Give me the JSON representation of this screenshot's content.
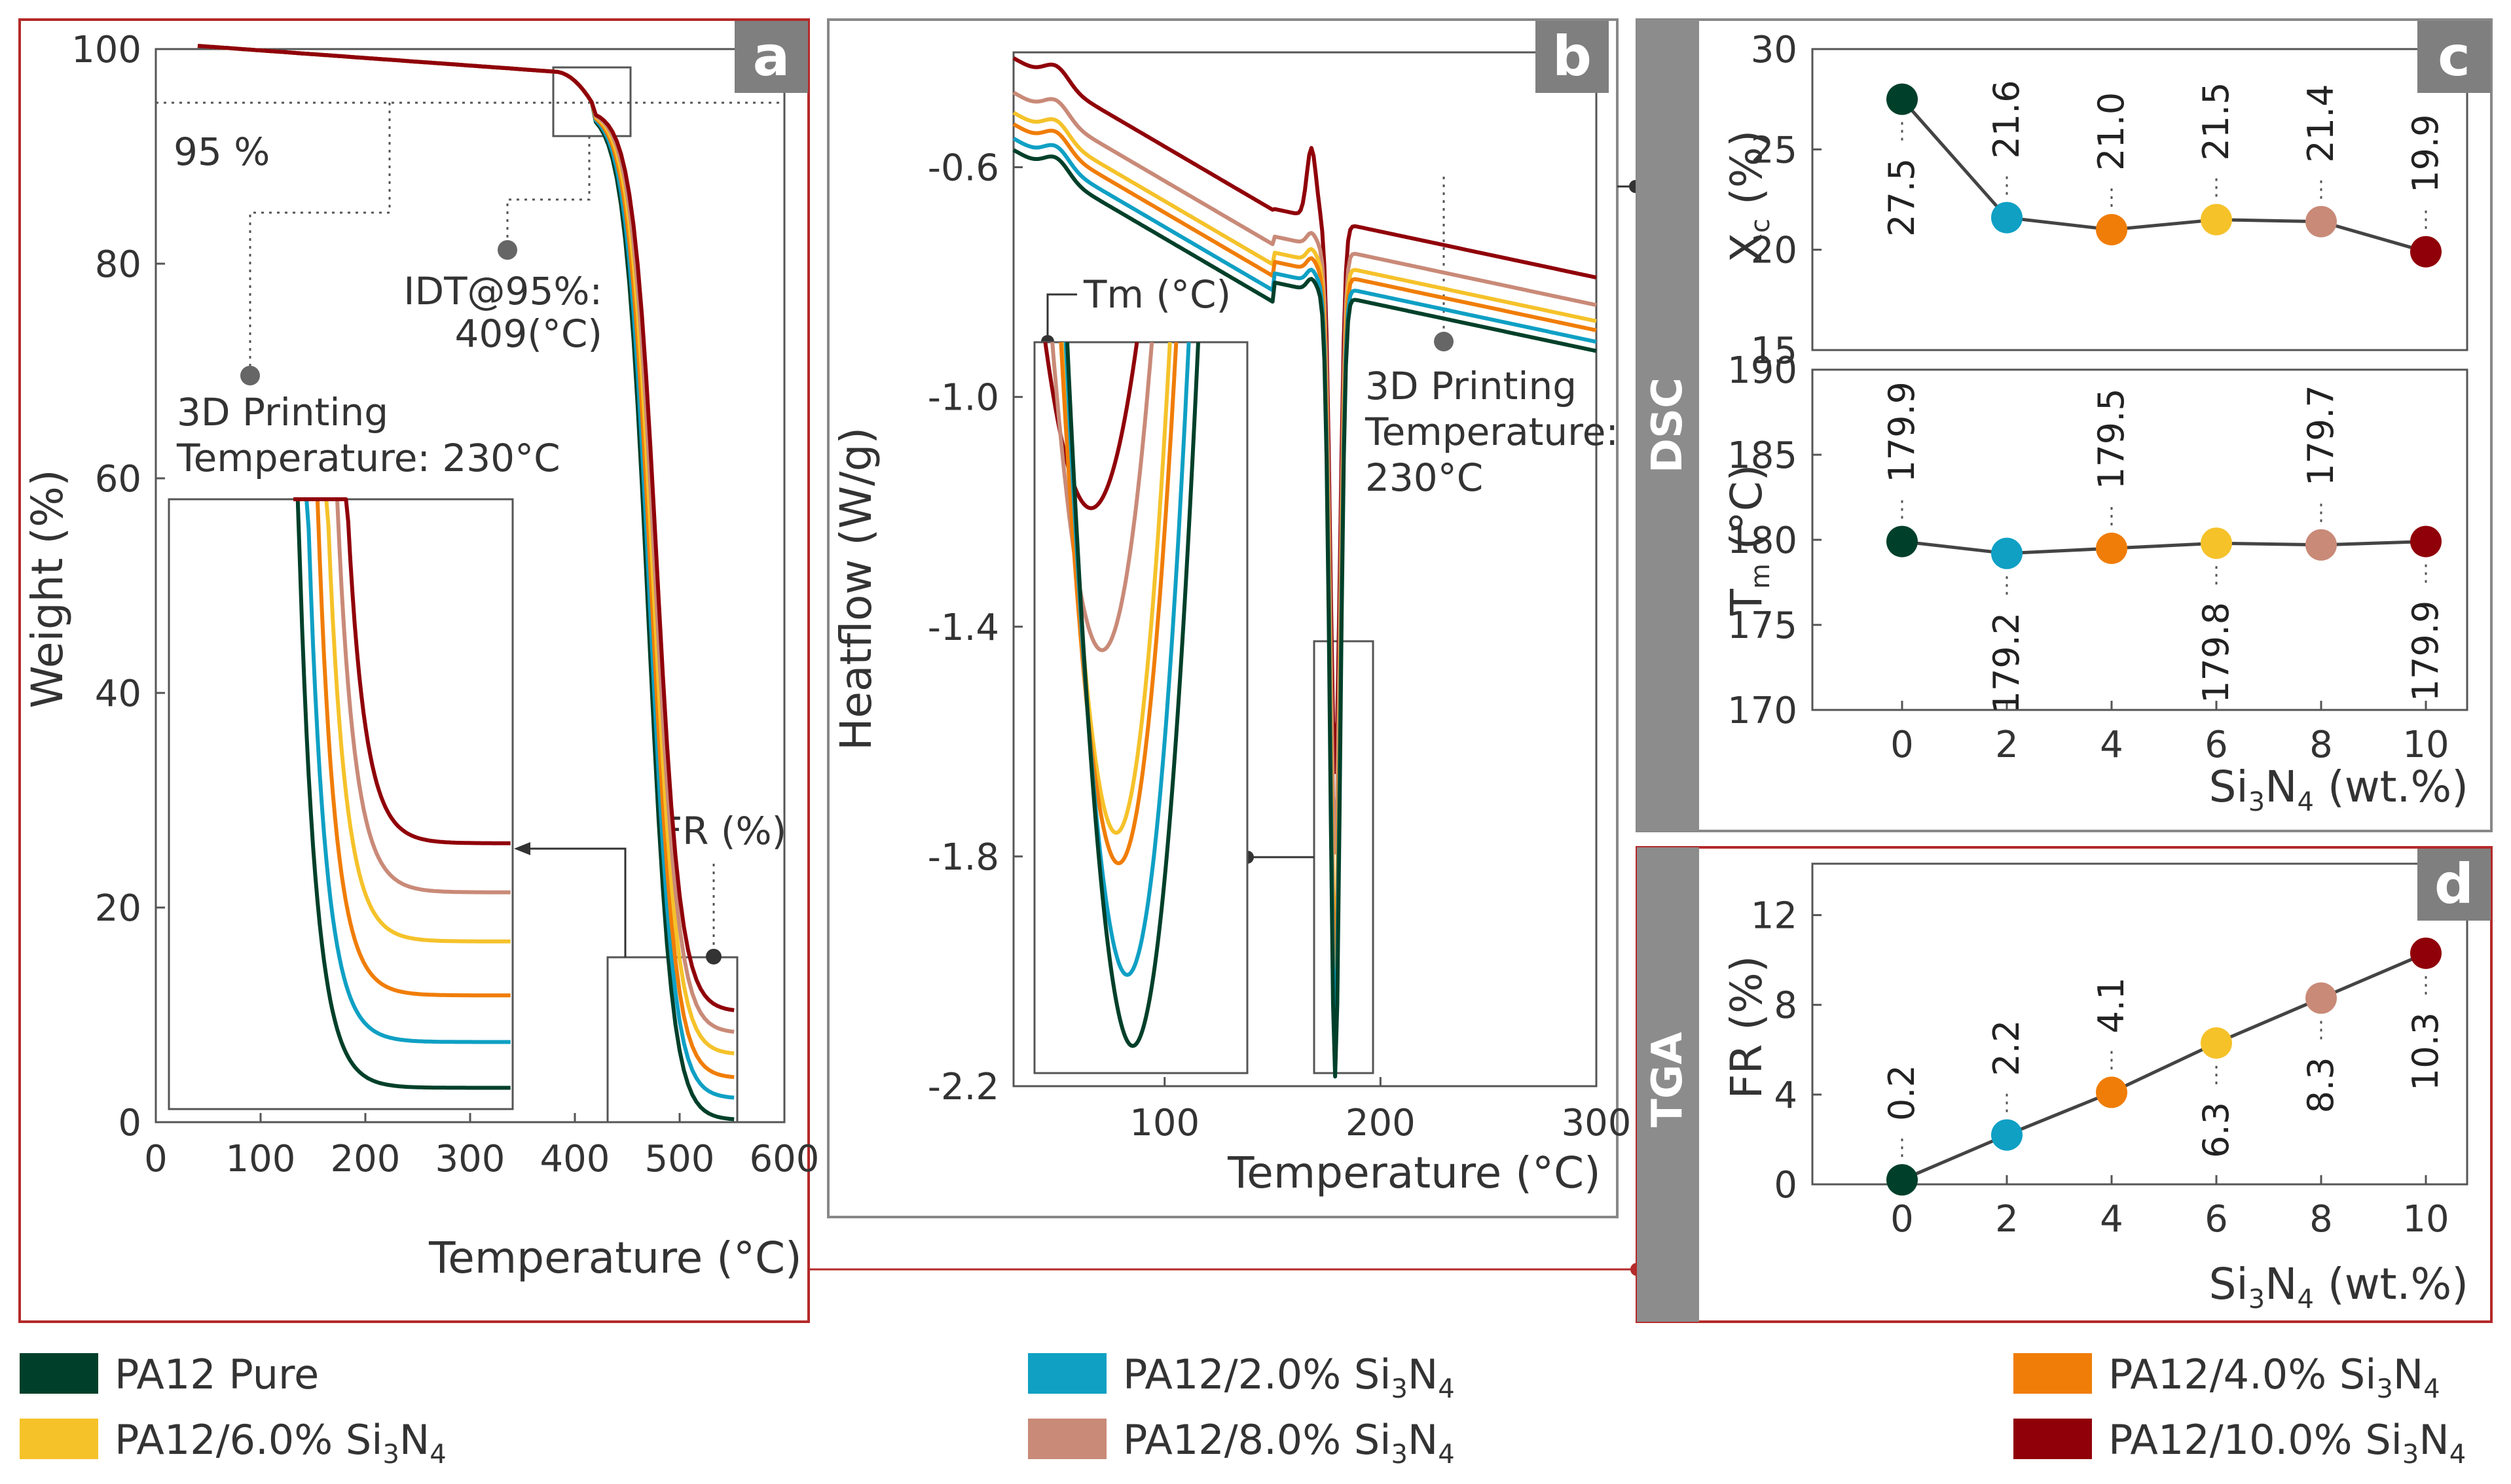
{
  "series": [
    {
      "name": "PA12 Pure",
      "color": "#00402a",
      "wt": 0
    },
    {
      "name": "PA12/2.0% Si3N4",
      "color": "#0fa0c4",
      "wt": 2
    },
    {
      "name": "PA12/4.0% Si3N4",
      "color": "#f07d07",
      "wt": 4
    },
    {
      "name": "PA12/6.0% Si3N4",
      "color": "#f5c22a",
      "wt": 6
    },
    {
      "name": "PA12/8.0% Si3N4",
      "color": "#c98a78",
      "wt": 8
    },
    {
      "name": "PA12/10.0% Si3N4",
      "color": "#900009",
      "wt": 10
    }
  ],
  "legend": {
    "pure": "PA12 Pure",
    "prefix": "PA12/",
    "items": [
      {
        "pct": "2.0%"
      },
      {
        "pct": "4.0%"
      },
      {
        "pct": "6.0%"
      },
      {
        "pct": "8.0%"
      },
      {
        "pct": "10.0%"
      }
    ]
  },
  "chart_data": [
    {
      "panel": "a",
      "type": "line",
      "xlabel": "Temperature (°C)",
      "ylabel": "Weight (%)",
      "xlim": [
        0,
        600
      ],
      "ylim": [
        0,
        100
      ],
      "xticks": [
        "0",
        "100",
        "200",
        "300",
        "400",
        "500",
        "600"
      ],
      "yticks": [
        "0",
        "20",
        "40",
        "60",
        "80",
        "100"
      ],
      "annotations": {
        "threshold": "95 %",
        "idt_line1": "IDT@95%:",
        "idt_line2": "409(°C)",
        "print_line1": "3D Printing",
        "print_line2": "Temperature: 230°C",
        "fr": "FR (%)"
      },
      "residues": [
        0.2,
        2.2,
        4.1,
        6.3,
        8.3,
        10.3
      ]
    },
    {
      "panel": "b",
      "type": "line",
      "xlabel": "Temperature (°C)",
      "ylabel": "Heatflow (W/g)",
      "xlim": [
        30,
        300
      ],
      "ylim": [
        -2.2,
        -0.4
      ],
      "xticks": [
        "100",
        "200",
        "300"
      ],
      "yticks": [
        "-0.6",
        "-1.0",
        "-1.4",
        "-1.8",
        "-2.2"
      ],
      "annotations": {
        "tm": "Tm (°C)",
        "print_line1": "3D Printing",
        "print_line2": "Temperature:",
        "print_line3": "230°C"
      },
      "peak_minima": [
        -2.16,
        -2.09,
        -1.98,
        -1.95,
        -1.77,
        -1.63
      ]
    },
    {
      "panel": "c-top",
      "type": "scatter",
      "ylabel": "Xc (%)",
      "x": [
        0,
        2,
        4,
        6,
        8,
        10
      ],
      "values": [
        27.5,
        21.6,
        21.0,
        21.5,
        21.4,
        19.9
      ],
      "ylim": [
        15,
        30
      ],
      "yticks": [
        "15",
        "20",
        "25",
        "30"
      ]
    },
    {
      "panel": "c-bottom",
      "type": "scatter",
      "ylabel": "Tm (°C)",
      "xlabel": "Si3N4 (wt.%)",
      "x": [
        0,
        2,
        4,
        6,
        8,
        10
      ],
      "values": [
        179.9,
        179.2,
        179.5,
        179.8,
        179.7,
        179.9
      ],
      "ylim": [
        170,
        190
      ],
      "yticks": [
        "170",
        "175",
        "180",
        "185",
        "190"
      ],
      "xticks": [
        "0",
        "2",
        "4",
        "6",
        "8",
        "10"
      ]
    },
    {
      "panel": "d",
      "type": "scatter",
      "ylabel": "FR (%)",
      "xlabel": "Si3N4 (wt.%)",
      "x": [
        0,
        2,
        4,
        6,
        8,
        10
      ],
      "values": [
        0.2,
        2.2,
        4.1,
        6.3,
        8.3,
        10.3
      ],
      "ylim": [
        0,
        14
      ],
      "yticks": [
        "0",
        "4",
        "8",
        "12"
      ],
      "xticks": [
        "0",
        "2",
        "4",
        "6",
        "8",
        "10"
      ]
    }
  ],
  "labels": {
    "panel_a": "a",
    "panel_b": "b",
    "panel_c": "c",
    "panel_d": "d",
    "dsc": "DSC",
    "tga": "TGA",
    "si": "Si",
    "sub3": "3",
    "n": "N",
    "sub4": "4",
    "wt": " (wt.%)",
    "xc_x": "X",
    "xc_sub": "c",
    "xc_unit": " (%)",
    "tm_t": "T",
    "tm_sub": "m",
    "tm_unit": " (°C)"
  }
}
